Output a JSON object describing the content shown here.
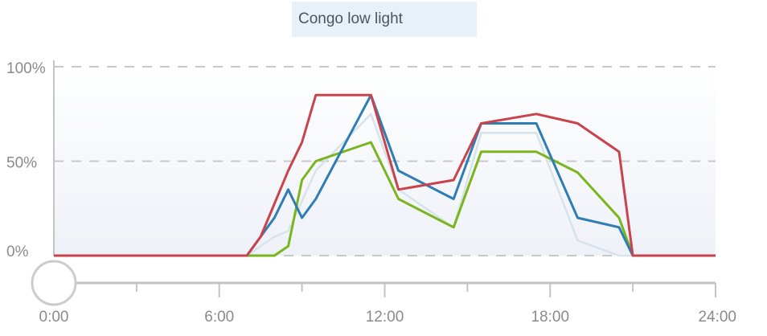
{
  "header": {
    "title": "Congo low light"
  },
  "chart_data": {
    "type": "line",
    "xlim": [
      0,
      24
    ],
    "ylim": [
      0,
      100
    ],
    "x_ticks": [
      {
        "value": 0,
        "label": "0:00"
      },
      {
        "value": 6,
        "label": "6:00"
      },
      {
        "value": 12,
        "label": "12:00"
      },
      {
        "value": 18,
        "label": "18:00"
      },
      {
        "value": 24,
        "label": "24:00"
      }
    ],
    "x_minor_ticks": [
      3,
      9,
      15,
      21
    ],
    "y_ticks": [
      {
        "value": 0,
        "label": "0%"
      },
      {
        "value": 50,
        "label": "50%"
      },
      {
        "value": 100,
        "label": "100%"
      }
    ],
    "grid": "horizontal-dashed",
    "series": [
      {
        "color": "#d7e3ea",
        "points": [
          [
            0,
            0
          ],
          [
            7,
            0
          ],
          [
            8,
            10
          ],
          [
            8.5,
            13
          ],
          [
            9.5,
            45
          ],
          [
            11.5,
            75
          ],
          [
            12.5,
            35
          ],
          [
            14.5,
            15
          ],
          [
            15.5,
            65
          ],
          [
            17.5,
            65
          ],
          [
            19,
            8
          ],
          [
            20.5,
            0
          ],
          [
            21,
            0
          ],
          [
            24,
            0
          ]
        ]
      },
      {
        "color": "#7ab51d",
        "points": [
          [
            0,
            0
          ],
          [
            7,
            0
          ],
          [
            8,
            0
          ],
          [
            8.5,
            5
          ],
          [
            9,
            40
          ],
          [
            9.5,
            50
          ],
          [
            11.5,
            60
          ],
          [
            12.5,
            30
          ],
          [
            14.5,
            15
          ],
          [
            15.5,
            55
          ],
          [
            17.5,
            55
          ],
          [
            19,
            44
          ],
          [
            20.5,
            20
          ],
          [
            21,
            0
          ],
          [
            24,
            0
          ]
        ]
      },
      {
        "color": "#2e7db5",
        "points": [
          [
            0,
            0
          ],
          [
            7,
            0
          ],
          [
            8,
            20
          ],
          [
            8.5,
            35
          ],
          [
            9,
            20
          ],
          [
            9.5,
            30
          ],
          [
            11.5,
            85
          ],
          [
            12.5,
            45
          ],
          [
            14.5,
            30
          ],
          [
            15.5,
            70
          ],
          [
            17.5,
            70
          ],
          [
            19,
            20
          ],
          [
            20.5,
            15
          ],
          [
            21,
            0
          ],
          [
            24,
            0
          ]
        ]
      },
      {
        "color": "#c8434b",
        "points": [
          [
            0,
            0
          ],
          [
            7,
            0
          ],
          [
            7.5,
            10
          ],
          [
            8.5,
            45
          ],
          [
            9,
            60
          ],
          [
            9.5,
            85
          ],
          [
            11.5,
            85
          ],
          [
            12.5,
            35
          ],
          [
            14.5,
            40
          ],
          [
            15.5,
            70
          ],
          [
            17.5,
            75
          ],
          [
            19,
            70
          ],
          [
            20.5,
            55
          ],
          [
            21,
            0
          ],
          [
            24,
            0
          ]
        ]
      }
    ],
    "slider": {
      "value": 0
    }
  }
}
